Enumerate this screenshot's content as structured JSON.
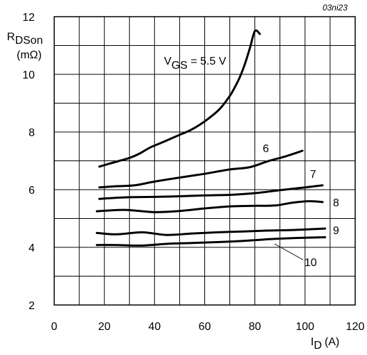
{
  "chart_data": {
    "type": "line",
    "reference": "03ni23",
    "ylabel": {
      "main": "R",
      "sub": "DSon",
      "unit": "(mΩ)"
    },
    "xlabel": {
      "main": "I",
      "sub": "D",
      "unit": "(A)"
    },
    "xlim": [
      0,
      120
    ],
    "ylim": [
      2,
      12
    ],
    "xticks": [
      0,
      20,
      40,
      60,
      80,
      100,
      120
    ],
    "yticks": [
      2,
      4,
      6,
      8,
      10,
      12
    ],
    "xgrid_step": 10,
    "ygrid_step": 1,
    "grid": true,
    "legend_title": {
      "prefix": "V",
      "sub": "GS",
      "suffix": " = 5.5 V"
    },
    "series": [
      {
        "name": "",
        "label": "",
        "x": [
          18,
          22,
          26,
          30,
          34,
          38,
          42,
          46,
          50,
          54,
          58,
          62,
          66,
          70,
          72,
          74,
          76,
          78,
          80,
          82
        ],
        "y": [
          6.8,
          6.9,
          7.0,
          7.1,
          7.25,
          7.45,
          7.6,
          7.75,
          7.9,
          8.05,
          8.25,
          8.5,
          8.8,
          9.25,
          9.55,
          9.9,
          10.35,
          10.9,
          11.5,
          11.4
        ]
      },
      {
        "name": "",
        "label": "6",
        "x": [
          18,
          25,
          32,
          40,
          50,
          60,
          70,
          78,
          85,
          92,
          99
        ],
        "y": [
          6.08,
          6.12,
          6.15,
          6.28,
          6.42,
          6.55,
          6.7,
          6.78,
          6.98,
          7.15,
          7.35
        ]
      },
      {
        "name": "",
        "label": "7",
        "x": [
          18,
          25,
          32,
          40,
          50,
          60,
          70,
          80,
          90,
          100,
          107
        ],
        "y": [
          5.68,
          5.72,
          5.74,
          5.75,
          5.77,
          5.8,
          5.82,
          5.88,
          5.98,
          6.08,
          6.15
        ]
      },
      {
        "name": "",
        "label": "8",
        "x": [
          17,
          28,
          40,
          50,
          60,
          70,
          80,
          88,
          95,
          102,
          107
        ],
        "y": [
          5.25,
          5.3,
          5.22,
          5.26,
          5.35,
          5.42,
          5.44,
          5.45,
          5.55,
          5.6,
          5.57
        ]
      },
      {
        "name": "",
        "label": "9",
        "x": [
          17,
          25,
          35,
          45,
          55,
          65,
          75,
          85,
          95,
          108
        ],
        "y": [
          4.5,
          4.45,
          4.52,
          4.43,
          4.48,
          4.52,
          4.55,
          4.58,
          4.6,
          4.65
        ]
      },
      {
        "name": "",
        "label": "10",
        "x": [
          17,
          25,
          35,
          45,
          55,
          65,
          75,
          85,
          95,
          108
        ],
        "y": [
          4.08,
          4.08,
          4.06,
          4.12,
          4.15,
          4.18,
          4.22,
          4.28,
          4.32,
          4.35
        ]
      }
    ]
  }
}
